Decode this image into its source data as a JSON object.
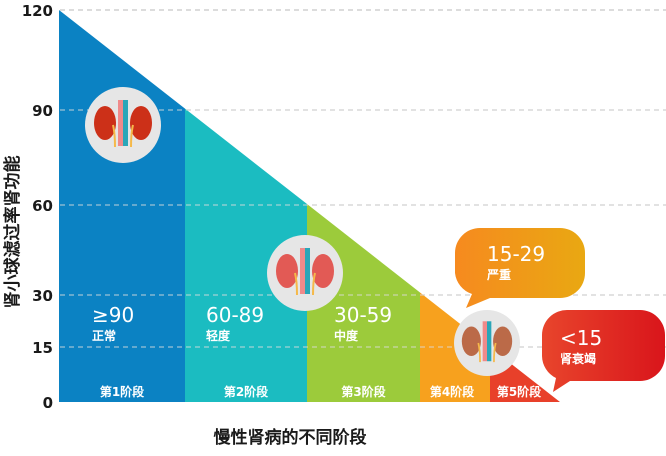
{
  "chart_data": {
    "type": "area",
    "title": "",
    "xlabel": "慢性肾病的不同阶段",
    "ylabel": "肾小球滤过率肾功能",
    "ylim": [
      0,
      120
    ],
    "yticks": [
      0,
      15,
      30,
      60,
      90,
      120
    ],
    "grid": "horizontal dashed",
    "stages": [
      {
        "label": "第1阶段",
        "range": "≥90",
        "severity": "正常",
        "color": "#0b82c3"
      },
      {
        "label": "第2阶段",
        "range": "60-89",
        "severity": "轻度",
        "color": "#1bbcc1"
      },
      {
        "label": "第3阶段",
        "range": "30-59",
        "severity": "中度",
        "color": "#9ccb3b"
      },
      {
        "label": "第4阶段",
        "range": "15-29",
        "severity": "严重",
        "color": "#f7a11e"
      },
      {
        "label": "第5阶段",
        "range": "<15",
        "severity": "肾衰竭",
        "color": "#e8402a"
      }
    ],
    "icons": [
      "kidney-icon",
      "kidney-icon",
      "kidney-icon"
    ]
  }
}
